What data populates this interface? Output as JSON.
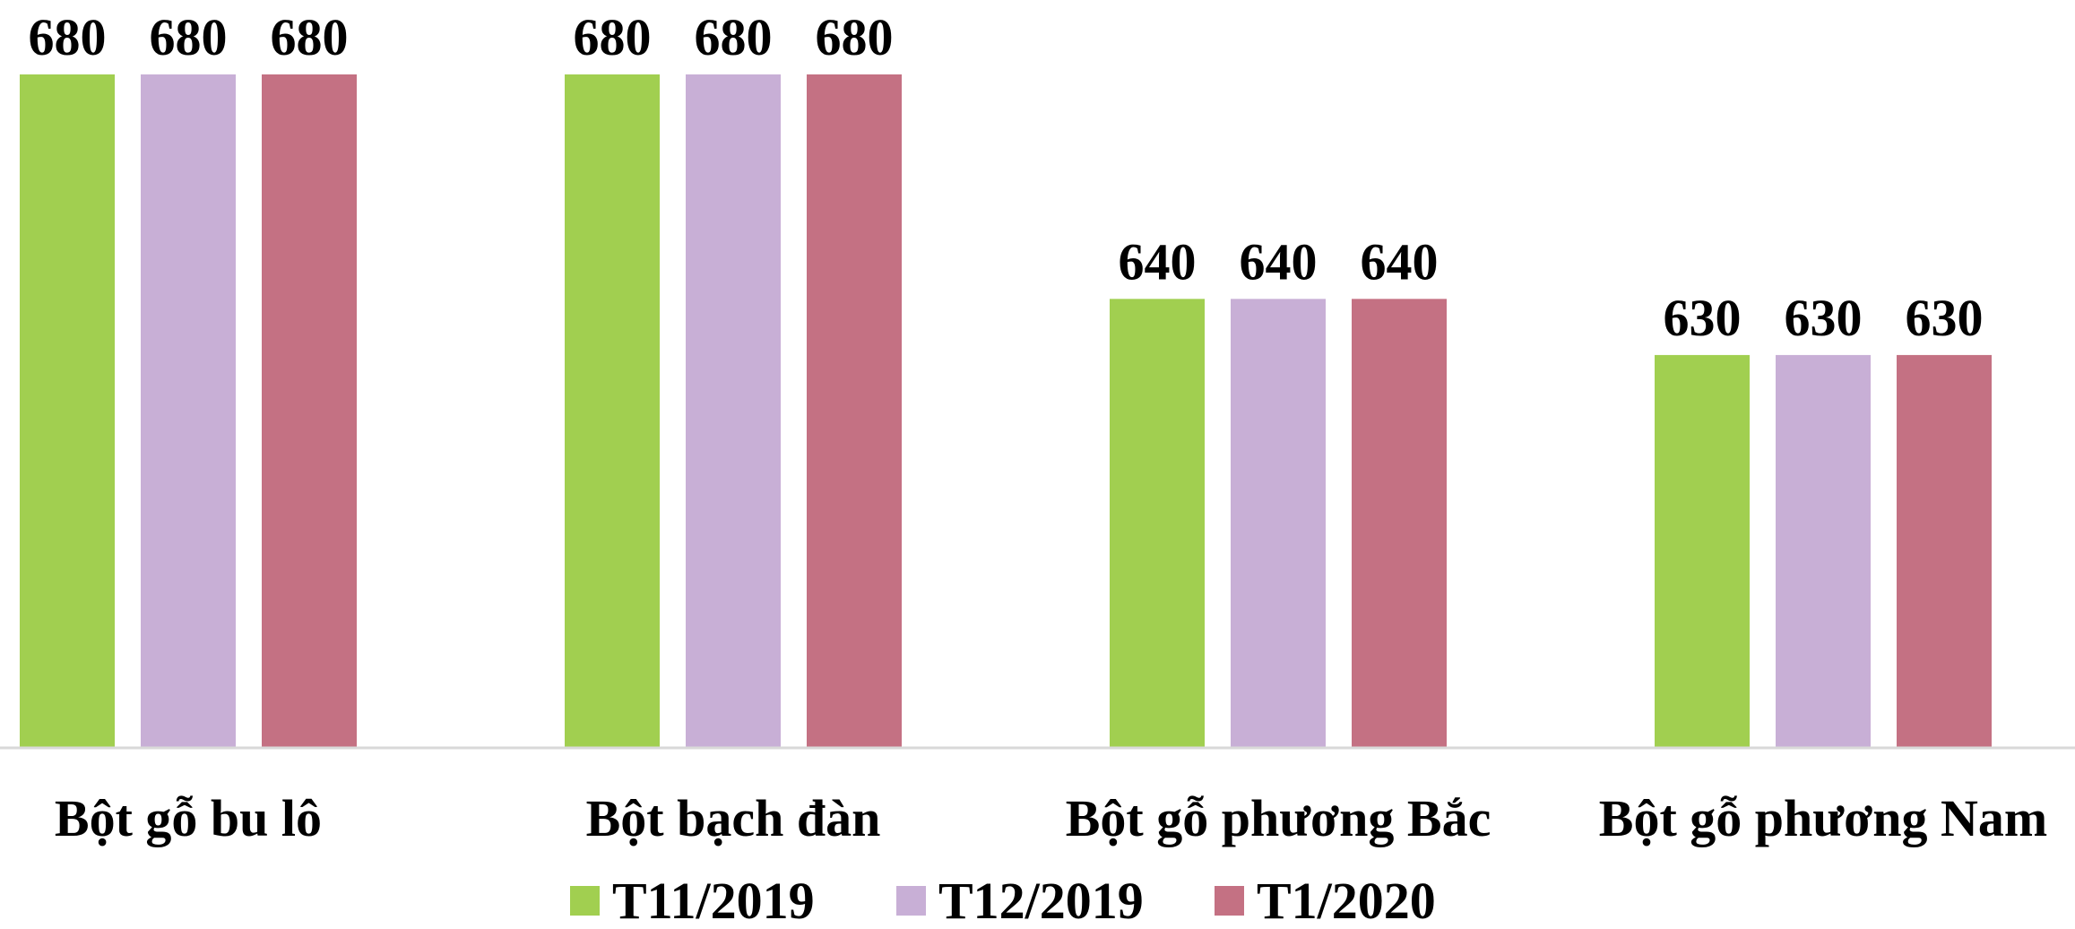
{
  "chart_data": {
    "type": "bar",
    "title": "",
    "xlabel": "",
    "ylabel": "",
    "categories": [
      "Bột gỗ bu lô",
      "Bột bạch đàn",
      "Bột gỗ phương Bắc",
      "Bột gỗ phương Nam"
    ],
    "series": [
      {
        "name": "T11/2019",
        "color": "#A1CF50",
        "values": [
          680,
          680,
          640,
          630
        ]
      },
      {
        "name": "T12/2019",
        "color": "#C8AFD6",
        "values": [
          680,
          680,
          640,
          630
        ]
      },
      {
        "name": "T1/2020",
        "color": "#C47183",
        "values": [
          680,
          680,
          640,
          630
        ]
      }
    ],
    "data_labels": [
      "680",
      "680",
      "680",
      "680",
      "680",
      "680",
      "640",
      "640",
      "640",
      "630",
      "630",
      "630"
    ],
    "ylim": [
      560,
      690
    ],
    "grid": false,
    "legend_position": "bottom",
    "axis_color": "#D9D9D9"
  }
}
